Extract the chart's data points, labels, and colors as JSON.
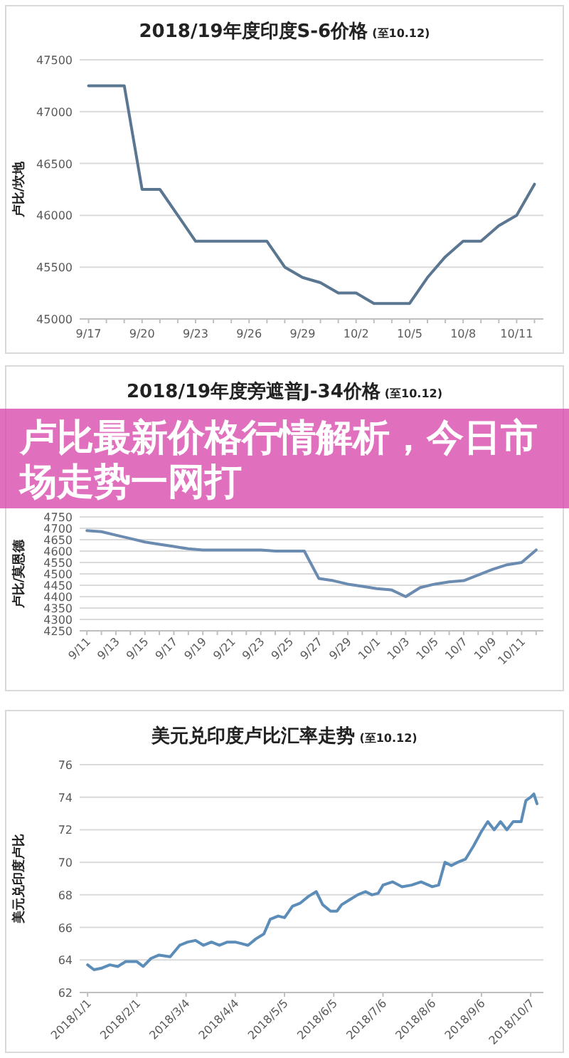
{
  "chart_data": [
    {
      "type": "line",
      "title": "2018/19年度印度S-6价格",
      "subtitle": "(至10.12)",
      "ylabel": "卢比/坎地",
      "categories": [
        "9/17",
        null,
        null,
        "9/20",
        null,
        null,
        "9/23",
        null,
        null,
        "9/26",
        null,
        null,
        "9/29",
        null,
        null,
        "10/2",
        null,
        null,
        "10/5",
        null,
        null,
        "10/8",
        null,
        null,
        "10/11",
        null
      ],
      "series": [
        {
          "color": "#5a7690",
          "values": [
            47250,
            47250,
            47250,
            46250,
            46250,
            46000,
            45750,
            45750,
            45750,
            45750,
            45750,
            45500,
            45400,
            45350,
            45250,
            45250,
            45150,
            45150,
            45150,
            45400,
            45600,
            45750,
            45750,
            45900,
            46000,
            46300
          ]
        }
      ],
      "ylim": [
        45000,
        47500
      ],
      "yticks": [
        45000,
        45500,
        46000,
        46500,
        47000,
        47500
      ],
      "grid": "y",
      "marker": "none",
      "line_style": "solid"
    },
    {
      "type": "line",
      "title": "2018/19年度旁遮普J-34价格",
      "subtitle": "(至10.12)",
      "ylabel": "卢比/莫恩德",
      "categories": [
        "9/11",
        null,
        "9/13",
        null,
        "9/15",
        null,
        "9/17",
        null,
        "9/19",
        null,
        "9/21",
        null,
        "9/23",
        null,
        "9/25",
        null,
        "9/27",
        null,
        "9/29",
        null,
        "10/1",
        null,
        "10/3",
        null,
        "10/5",
        null,
        "10/7",
        null,
        "10/9",
        null,
        "10/11",
        null
      ],
      "series": [
        {
          "color": "#6b8bb0",
          "values": [
            4690,
            4685,
            4670,
            4655,
            4640,
            4630,
            4620,
            4610,
            4605,
            4605,
            4605,
            4605,
            4605,
            4600,
            4600,
            4600,
            4480,
            4470,
            4455,
            4445,
            4435,
            4430,
            4400,
            4440,
            4455,
            4465,
            4470,
            4495,
            4520,
            4540,
            4550,
            4605
          ]
        }
      ],
      "ylim": [
        4250,
        4750
      ],
      "yticks": [
        4250,
        4300,
        4350,
        4400,
        4450,
        4500,
        4550,
        4600,
        4650,
        4700,
        4750
      ],
      "grid": "y",
      "marker": "none",
      "line_style": "solid"
    },
    {
      "type": "other",
      "title": "卢比最新价格行情解析，今日市场走势一网打"
    },
    {
      "type": "line",
      "title": "美元兑印度卢比汇率走势",
      "subtitle": "(至10.12)",
      "ylabel": "美元兑印度卢比",
      "x": [
        "2018-01-01",
        "2018-01-05",
        "2018-01-10",
        "2018-01-15",
        "2018-01-20",
        "2018-01-25",
        "2018-02-01",
        "2018-02-05",
        "2018-02-10",
        "2018-02-15",
        "2018-02-22",
        "2018-02-28",
        "2018-03-05",
        "2018-03-10",
        "2018-03-15",
        "2018-03-20",
        "2018-03-25",
        "2018-03-30",
        "2018-04-04",
        "2018-04-08",
        "2018-04-12",
        "2018-04-17",
        "2018-04-22",
        "2018-04-26",
        "2018-05-01",
        "2018-05-05",
        "2018-05-10",
        "2018-05-15",
        "2018-05-20",
        "2018-05-25",
        "2018-05-29",
        "2018-06-03",
        "2018-06-07",
        "2018-06-10",
        "2018-06-15",
        "2018-06-20",
        "2018-06-25",
        "2018-06-29",
        "2018-07-03",
        "2018-07-06",
        "2018-07-12",
        "2018-07-18",
        "2018-07-24",
        "2018-07-30",
        "2018-08-06",
        "2018-08-10",
        "2018-08-14",
        "2018-08-18",
        "2018-08-22",
        "2018-08-27",
        "2018-09-01",
        "2018-09-06",
        "2018-09-10",
        "2018-09-14",
        "2018-09-18",
        "2018-09-22",
        "2018-09-26",
        "2018-10-01",
        "2018-10-04",
        "2018-10-07",
        "2018-10-09",
        "2018-10-11"
      ],
      "series": [
        {
          "color": "#5b8db8",
          "values": [
            63.7,
            63.4,
            63.5,
            63.7,
            63.6,
            63.9,
            63.9,
            63.6,
            64.1,
            64.3,
            64.2,
            64.9,
            65.1,
            65.2,
            64.9,
            65.1,
            64.9,
            65.1,
            65.1,
            65.0,
            64.9,
            65.3,
            65.6,
            66.5,
            66.7,
            66.6,
            67.3,
            67.5,
            67.9,
            68.2,
            67.4,
            67.0,
            67.0,
            67.4,
            67.7,
            68.0,
            68.2,
            68.0,
            68.1,
            68.6,
            68.8,
            68.5,
            68.6,
            68.8,
            68.5,
            68.6,
            70.0,
            69.8,
            70.0,
            70.2,
            71.0,
            71.9,
            72.5,
            72.0,
            72.5,
            72.0,
            72.5,
            72.5,
            73.8,
            74.0,
            74.2,
            73.6
          ]
        }
      ],
      "xlim": [
        "2017-12-27",
        "2018-10-15"
      ],
      "xticks": [
        {
          "value": "2018-01-01",
          "label": "2018/1/1"
        },
        {
          "value": "2018-02-01",
          "label": "2018/2/1"
        },
        {
          "value": "2018-03-04",
          "label": "2018/3/4"
        },
        {
          "value": "2018-04-04",
          "label": "2018/4/4"
        },
        {
          "value": "2018-05-05",
          "label": "2018/5/5"
        },
        {
          "value": "2018-06-05",
          "label": "2018/6/5"
        },
        {
          "value": "2018-07-06",
          "label": "2018/7/6"
        },
        {
          "value": "2018-08-06",
          "label": "2018/8/6"
        },
        {
          "value": "2018-09-06",
          "label": "2018/9/6"
        },
        {
          "value": "2018-10-07",
          "label": "2018/10/7"
        }
      ],
      "ylim": [
        62,
        76
      ],
      "yticks": [
        62,
        64,
        66,
        68,
        70,
        72,
        74,
        76
      ],
      "grid": "y",
      "marker": "none",
      "line_style": "solid"
    }
  ]
}
